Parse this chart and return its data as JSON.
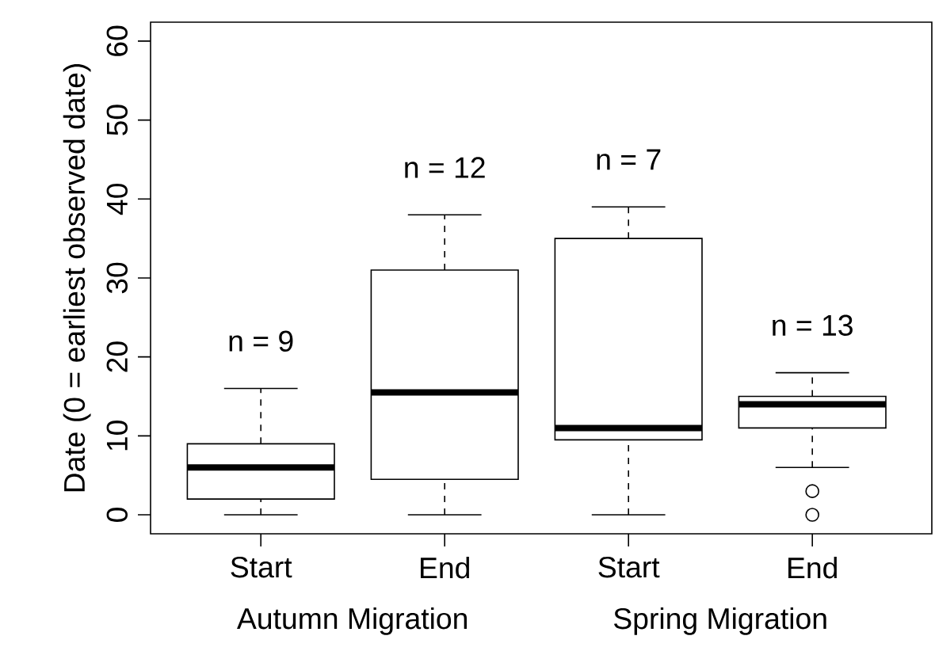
{
  "chart_data": {
    "type": "box",
    "ylabel": "Date (0 = earliest observed date)",
    "categories": [
      "Start",
      "End",
      "Start",
      "End"
    ],
    "boxes": [
      {
        "low": 0,
        "q1": 2,
        "median": 6,
        "q3": 9,
        "high": 16
      },
      {
        "low": 0,
        "q1": 4.5,
        "median": 15.5,
        "q3": 31,
        "high": 38
      },
      {
        "low": 0,
        "q1": 9.5,
        "median": 11,
        "q3": 35,
        "high": 39
      },
      {
        "low": 6,
        "q1": 11,
        "median": 14,
        "q3": 15,
        "high": 18,
        "outliers": [
          3,
          0
        ]
      }
    ],
    "ylim": [
      -2.4,
      62.4
    ],
    "yticks": [
      0,
      10,
      20,
      30,
      40,
      50,
      60
    ],
    "annotations": [
      "n =  9",
      "n =  12",
      "n =  7",
      "n =  13",
      "Autumn Migration",
      "Spring Migration"
    ]
  }
}
